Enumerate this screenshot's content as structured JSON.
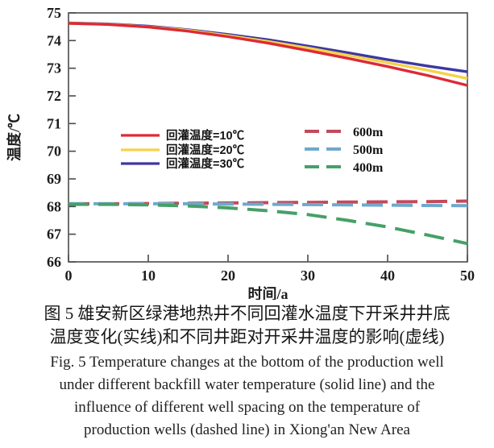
{
  "chart_data": {
    "type": "line",
    "title": "",
    "xlabel": "时间/a",
    "ylabel": "温度/℃",
    "xlim": [
      0,
      50
    ],
    "ylim": [
      66,
      75
    ],
    "xticks": [
      0,
      10,
      20,
      30,
      40,
      50
    ],
    "yticks": [
      66,
      67,
      68,
      69,
      70,
      71,
      72,
      73,
      74,
      75
    ],
    "grid": false,
    "legend_position": "inside-middle, two groups: solid lines left, dashed lines right",
    "axis_color": "#4a4a4a",
    "x": [
      0,
      5,
      10,
      15,
      20,
      25,
      30,
      35,
      40,
      45,
      50
    ],
    "series": [
      {
        "name": "回灌温度=10℃",
        "style": "solid",
        "color": "#dc2a36",
        "values": [
          74.62,
          74.58,
          74.49,
          74.34,
          74.14,
          73.91,
          73.64,
          73.36,
          73.06,
          72.74,
          72.38
        ]
      },
      {
        "name": "回灌温度=20℃",
        "style": "solid",
        "color": "#f5d24b",
        "values": [
          74.63,
          74.59,
          74.5,
          74.37,
          74.18,
          73.97,
          73.73,
          73.47,
          73.2,
          72.93,
          72.63
        ]
      },
      {
        "name": "回灌温度=30℃",
        "style": "solid",
        "color": "#3d37a2",
        "values": [
          74.64,
          74.6,
          74.52,
          74.39,
          74.22,
          74.03,
          73.8,
          73.56,
          73.31,
          73.08,
          72.87
        ]
      },
      {
        "name": "600m",
        "style": "dashed",
        "color": "#c24a5c",
        "values": [
          68.1,
          68.1,
          68.11,
          68.12,
          68.13,
          68.14,
          68.15,
          68.16,
          68.17,
          68.18,
          68.2
        ]
      },
      {
        "name": "500m",
        "style": "dashed",
        "color": "#6fa9cd",
        "values": [
          68.1,
          68.1,
          68.1,
          68.1,
          68.09,
          68.08,
          68.07,
          68.06,
          68.05,
          68.04,
          68.03
        ]
      },
      {
        "name": "400m",
        "style": "dashed",
        "color": "#46a067",
        "values": [
          68.08,
          68.08,
          68.06,
          68.02,
          67.95,
          67.85,
          67.71,
          67.5,
          67.26,
          66.97,
          66.66
        ]
      }
    ]
  },
  "caption": {
    "zh_line1": "图 5  雄安新区绿港地热井不同回灌水温度下开采井井底",
    "zh_line2": "温度变化(实线)和不同井距对开采井温度的影响(虚线)",
    "en_line1": "Fig. 5  Temperature changes at the bottom of the production well",
    "en_line2": "under different backfill water temperature (solid line) and the",
    "en_line3": "influence of different well spacing on the temperature of",
    "en_line4": "production wells (dashed line) in Xiong'an New Area"
  }
}
